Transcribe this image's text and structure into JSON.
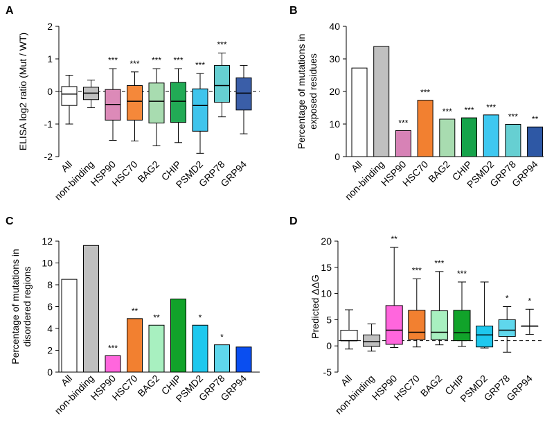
{
  "chart_data": [
    {
      "panel": "A",
      "type": "box",
      "ylabel": "ELISA log2 ratio (Mut / WT)",
      "ylim": [
        -2,
        2
      ],
      "yticks": [
        -2,
        -1,
        0,
        1,
        2
      ],
      "reference_line": 0,
      "categories": [
        "All",
        "non-binding",
        "HSP90",
        "HSC70",
        "BAG2",
        "CHIP",
        "PSMD2",
        "GRP78",
        "GRP94"
      ],
      "boxes": [
        {
          "min": -1.0,
          "q1": -0.43,
          "median": -0.08,
          "q3": 0.15,
          "max": 0.5,
          "sig": ""
        },
        {
          "min": -0.5,
          "q1": -0.25,
          "median": -0.05,
          "q3": 0.13,
          "max": 0.35,
          "sig": ""
        },
        {
          "min": -1.5,
          "q1": -0.88,
          "median": -0.4,
          "q3": 0.06,
          "max": 0.7,
          "sig": "***"
        },
        {
          "min": -1.52,
          "q1": -0.88,
          "median": -0.3,
          "q3": 0.18,
          "max": 0.6,
          "sig": "***"
        },
        {
          "min": -1.67,
          "q1": -0.97,
          "median": -0.3,
          "q3": 0.26,
          "max": 0.7,
          "sig": "***"
        },
        {
          "min": -1.57,
          "q1": -0.95,
          "median": -0.3,
          "q3": 0.28,
          "max": 0.7,
          "sig": "***"
        },
        {
          "min": -1.9,
          "q1": -1.22,
          "median": -0.43,
          "q3": 0.08,
          "max": 0.55,
          "sig": "***"
        },
        {
          "min": -0.78,
          "q1": -0.33,
          "median": 0.18,
          "q3": 0.8,
          "max": 1.18,
          "sig": "***"
        },
        {
          "min": -1.3,
          "q1": -0.57,
          "median": -0.05,
          "q3": 0.42,
          "max": 0.8,
          "sig": ""
        }
      ]
    },
    {
      "panel": "B",
      "type": "bar",
      "ylabel": "Percentage of mutations in exposed residues",
      "ylim": [
        0,
        40
      ],
      "yticks": [
        0,
        10,
        20,
        30,
        40
      ],
      "categories": [
        "All",
        "non-binding",
        "HSP90",
        "HSC70",
        "BAG2",
        "CHIP",
        "PSMD2",
        "GRP78",
        "GRP94"
      ],
      "values": [
        27.2,
        33.8,
        8.0,
        17.3,
        11.5,
        11.9,
        12.8,
        9.9,
        9.1
      ],
      "sig": [
        "",
        "",
        "***",
        "***",
        "***",
        "***",
        "***",
        "***",
        "**"
      ]
    },
    {
      "panel": "C",
      "type": "bar",
      "ylabel": "Percentage of mutations in disordered regions",
      "ylim": [
        0,
        12
      ],
      "yticks": [
        0,
        2,
        4,
        6,
        8,
        10,
        12
      ],
      "categories": [
        "All",
        "non-binding",
        "HSP90",
        "HSC70",
        "BAG2",
        "CHIP",
        "PSMD2",
        "GRP78",
        "GRP94"
      ],
      "values": [
        8.5,
        11.6,
        1.5,
        4.9,
        4.3,
        6.7,
        4.3,
        2.5,
        2.3
      ],
      "sig": [
        "",
        "",
        "***",
        "**",
        "**",
        "",
        "*",
        "*",
        ""
      ]
    },
    {
      "panel": "D",
      "type": "box",
      "ylabel": "Predicted ΔΔG",
      "ylim": [
        -5,
        20
      ],
      "yticks": [
        -5,
        0,
        5,
        10,
        15,
        20
      ],
      "reference_line": 1.0,
      "categories": [
        "All",
        "non-binding",
        "HSP90",
        "HSC70",
        "BAG2",
        "CHIP",
        "PSMD2",
        "GRP78",
        "GRP94"
      ],
      "boxes": [
        {
          "min": -0.6,
          "q1": 1.0,
          "median": 1.0,
          "q3": 3.0,
          "max": 6.9,
          "sig": ""
        },
        {
          "min": -1.0,
          "q1": -0.1,
          "median": 0.8,
          "q3": 2.1,
          "max": 4.2,
          "sig": ""
        },
        {
          "min": -0.3,
          "q1": 0.3,
          "median": 3.0,
          "q3": 7.7,
          "max": 18.8,
          "sig": "**"
        },
        {
          "min": -0.2,
          "q1": 1.2,
          "median": 2.6,
          "q3": 6.8,
          "max": 12.8,
          "sig": "***"
        },
        {
          "min": 0.2,
          "q1": 1.2,
          "median": 2.6,
          "q3": 6.7,
          "max": 14.2,
          "sig": "***"
        },
        {
          "min": -0.1,
          "q1": 1.0,
          "median": 2.5,
          "q3": 6.8,
          "max": 12.2,
          "sig": "***"
        },
        {
          "min": -0.4,
          "q1": -0.2,
          "median": 2.1,
          "q3": 3.8,
          "max": 12.2,
          "sig": ""
        },
        {
          "min": -1.2,
          "q1": 1.8,
          "median": 3.0,
          "q3": 5.0,
          "max": 7.5,
          "sig": "*"
        },
        {
          "min": 2.2,
          "q1": 3.8,
          "median": 3.8,
          "q3": 3.8,
          "max": 7.0,
          "sig": "*"
        }
      ]
    }
  ],
  "colors": {
    "A": [
      "#ffffff",
      "#c0c0c0",
      "#dc8ab8",
      "#f5883a",
      "#a8dcb0",
      "#22aa55",
      "#3fc4ec",
      "#66cfd2",
      "#3a5ea8"
    ],
    "B": [
      "#ffffff",
      "#c0c0c0",
      "#d782b6",
      "#f28030",
      "#a8dcb0",
      "#16a34a",
      "#3ec8f0",
      "#66cfd2",
      "#2e58a5"
    ],
    "C": [
      "#ffffff",
      "#c0c0c0",
      "#ff66dd",
      "#f28030",
      "#a8f0c0",
      "#11a32a",
      "#1ec8ee",
      "#5fd7ec",
      "#0a4ef0"
    ],
    "D": [
      "#ffffff",
      "#c0c0c0",
      "#ff66dd",
      "#f28030",
      "#a8f0c0",
      "#11a32a",
      "#1ec8ee",
      "#5fd7ec",
      "#ffffff"
    ]
  }
}
